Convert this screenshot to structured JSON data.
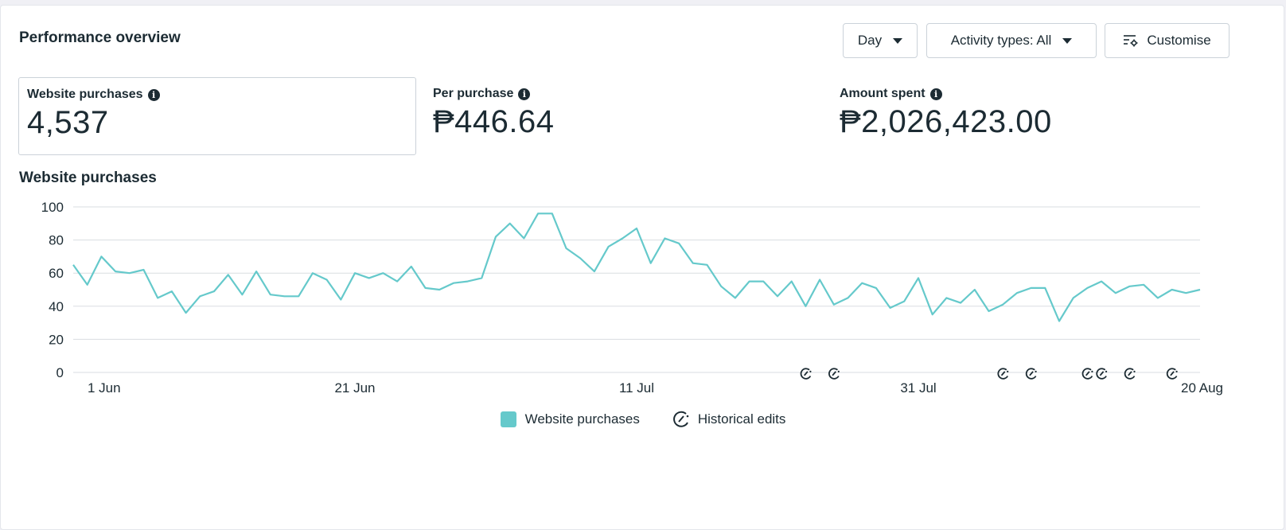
{
  "header": {
    "title": "Performance overview",
    "day_label": "Day",
    "activity_label": "Activity types: All",
    "customise_label": "Customise"
  },
  "metrics": [
    {
      "label": "Website purchases",
      "value": "4,537"
    },
    {
      "label": "Per purchase",
      "value": "₱446.64"
    },
    {
      "label": "Amount spent",
      "value": "₱2,026,423.00"
    }
  ],
  "colors": {
    "line": "#65c9cb",
    "grid": "#dadde1",
    "text": "#1c2b33"
  },
  "chart_data": {
    "type": "line",
    "title": "Website purchases",
    "xlabel": "",
    "ylabel": "",
    "ylim": [
      0,
      100
    ],
    "yticks": [
      0,
      20,
      40,
      60,
      80,
      100
    ],
    "x_tick_labels": [
      {
        "label": "1 Jun",
        "index": 0
      },
      {
        "label": "21 Jun",
        "index": 20
      },
      {
        "label": "11 Jul",
        "index": 40
      },
      {
        "label": "31 Jul",
        "index": 60
      },
      {
        "label": "20 Aug",
        "index": 80
      }
    ],
    "grid": true,
    "legend_position": "bottom-center",
    "series": [
      {
        "name": "Website purchases",
        "values": [
          65,
          53,
          70,
          61,
          60,
          62,
          45,
          49,
          36,
          46,
          49,
          59,
          47,
          61,
          47,
          46,
          46,
          60,
          56,
          44,
          60,
          57,
          60,
          55,
          64,
          51,
          50,
          54,
          55,
          57,
          82,
          90,
          81,
          96,
          96,
          75,
          69,
          61,
          76,
          81,
          87,
          66,
          81,
          78,
          66,
          65,
          52,
          45,
          55,
          55,
          46,
          55,
          40,
          56,
          41,
          45,
          54,
          51,
          39,
          43,
          57,
          35,
          45,
          42,
          50,
          37,
          41,
          48,
          51,
          51,
          31,
          45,
          51,
          55,
          48,
          52,
          53,
          45,
          50,
          48,
          50
        ]
      }
    ],
    "historical_edits_indices": [
      52,
      54,
      66,
      68,
      72,
      73,
      75,
      78
    ],
    "legend": {
      "series_label": "Website purchases",
      "edits_label": "Historical edits"
    }
  }
}
